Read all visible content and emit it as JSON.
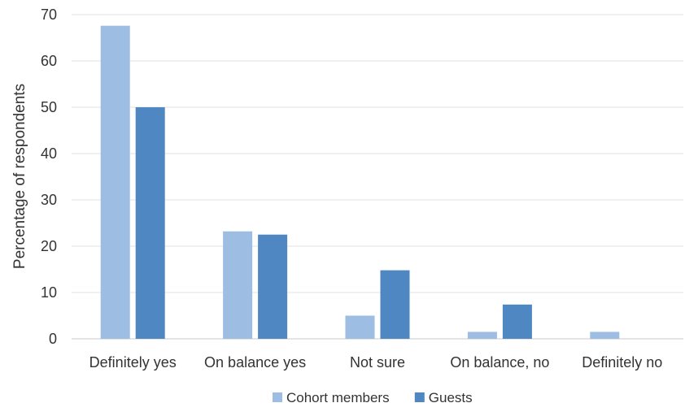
{
  "chart_data": {
    "type": "bar",
    "title": "",
    "xlabel": "",
    "ylabel": "Percentage of respondents",
    "ylim": [
      0,
      70
    ],
    "yticks": [
      0,
      10,
      20,
      30,
      40,
      50,
      60,
      70
    ],
    "grid": true,
    "legend_position": "bottom",
    "categories": [
      "Definitely yes",
      "On balance yes",
      "Not sure",
      "On balance, no",
      "Definitely no"
    ],
    "series": [
      {
        "name": "Cohort members",
        "color": "#9dbde3",
        "values": [
          67.6,
          23.2,
          5.0,
          1.5,
          1.5
        ]
      },
      {
        "name": "Guests",
        "color": "#4f87c2",
        "values": [
          50.0,
          22.5,
          14.8,
          7.4,
          0
        ]
      }
    ]
  }
}
